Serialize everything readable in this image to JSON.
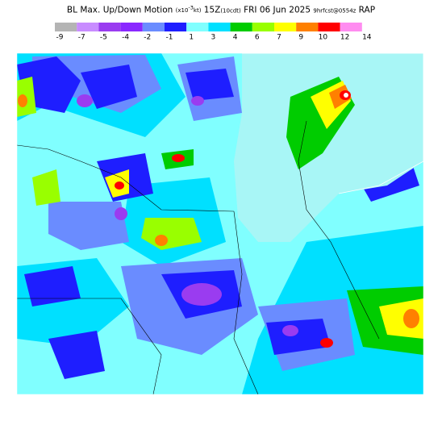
{
  "title": {
    "product": "BL Max. Up/Down Motion",
    "units_prefix": "(x10",
    "units_exponent": "-3",
    "units_suffix": "kt)",
    "valid_time": "15Z",
    "local_time": "(10cdt)",
    "date": "FRI 06 Jun 2025",
    "forecast": "9hrfcst@0554z",
    "model": "RAP"
  },
  "legend": {
    "colors": [
      "#b4b4b4",
      "#c88cff",
      "#9a3cf0",
      "#8a28ff",
      "#6a8cff",
      "#1e1eff",
      "#80ffff",
      "#00e0ff",
      "#00cc00",
      "#99ff00",
      "#ffff00",
      "#ff8000",
      "#ff0000",
      "#ff8cf0"
    ],
    "labels": [
      -9,
      -7,
      -5,
      -4,
      -2,
      -1,
      1,
      3,
      4,
      6,
      7,
      9,
      10,
      12,
      14
    ]
  }
}
